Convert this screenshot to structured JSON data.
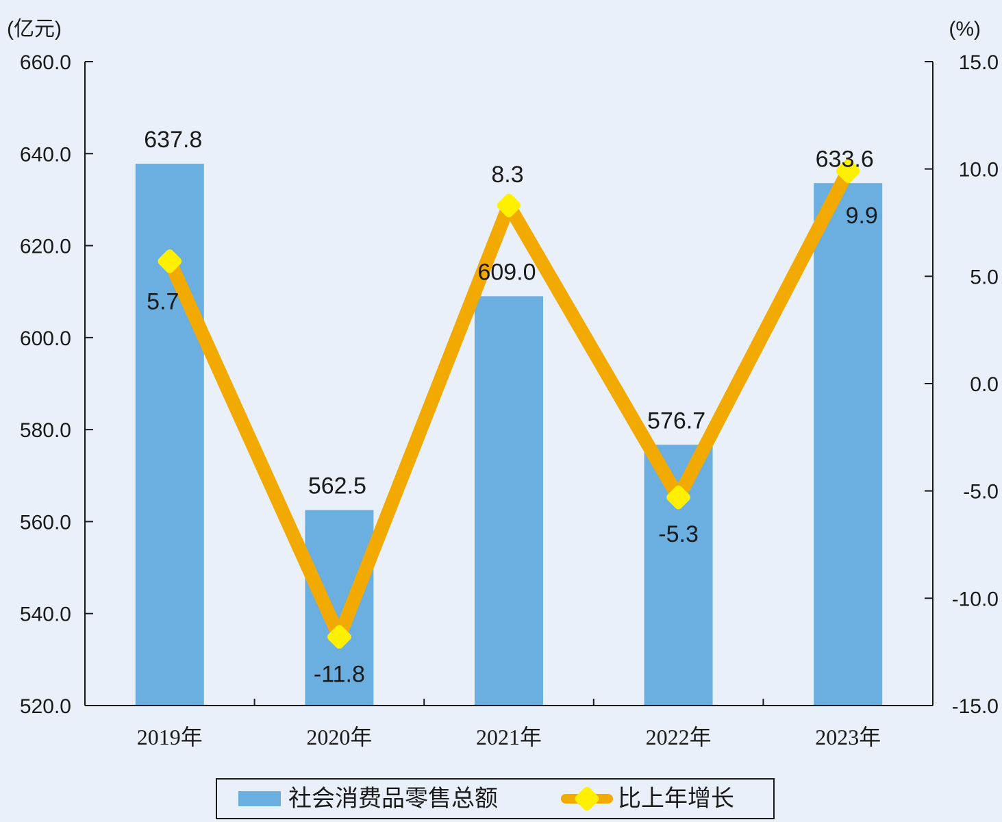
{
  "chart_data": {
    "type": "bar",
    "categories": [
      "2019年",
      "2020年",
      "2021年",
      "2022年",
      "2023年"
    ],
    "series": [
      {
        "name": "社会消费品零售总额",
        "type": "bar",
        "axis": "left",
        "values": [
          637.8,
          562.5,
          609.0,
          576.7,
          633.6
        ],
        "labels": [
          "637.8",
          "562.5",
          "609.0",
          "576.7",
          "633.6"
        ],
        "color": "#6aafe0"
      },
      {
        "name": "比上年增长",
        "type": "line",
        "axis": "right",
        "values": [
          5.7,
          -11.8,
          8.3,
          -5.3,
          9.9
        ],
        "labels": [
          "5.7",
          "-11.8",
          "8.3",
          "-5.3",
          "9.9"
        ],
        "color": "#f2a900",
        "marker_color": "#fff000"
      }
    ],
    "y_left": {
      "unit": "(亿元)",
      "range": [
        520,
        660
      ],
      "ticks": [
        "660.0",
        "640.0",
        "620.0",
        "600.0",
        "580.0",
        "560.0",
        "540.0",
        "520.0"
      ],
      "tick_values": [
        660,
        640,
        620,
        600,
        580,
        560,
        540,
        520
      ]
    },
    "y_right": {
      "unit": "(%)",
      "range": [
        -15,
        15
      ],
      "ticks": [
        "15.0",
        "10.0",
        "5.0",
        "0.0",
        "-5.0",
        "-10.0",
        "-15.0"
      ],
      "tick_values": [
        15,
        10,
        5,
        0,
        -5,
        -10,
        -15
      ]
    },
    "legend_position": "bottom-center",
    "grid": false
  }
}
